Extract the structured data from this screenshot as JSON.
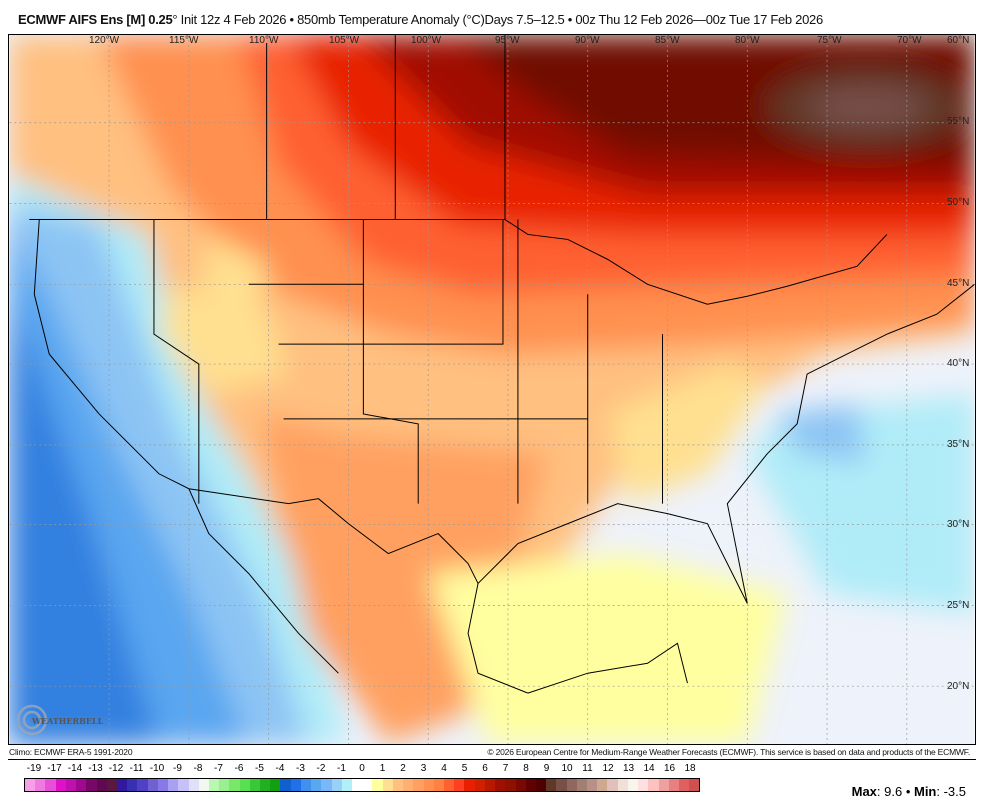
{
  "header": {
    "model": "ECMWF AIFS Ens [M] 0.25",
    "degree": "°",
    "rest": " Init 12z 4 Feb 2026 • 850mb Temperature Anomaly (°C)Days 7.5–12.5 • 00z Thu 12 Feb 2026—00z Tue 17 Feb 2026"
  },
  "map": {
    "lon_labels": [
      "120°W",
      "115°W",
      "110°W",
      "105°W",
      "100°W",
      "95°W",
      "90°W",
      "85°W",
      "80°W",
      "75°W",
      "70°W",
      "60°N"
    ],
    "lat_labels": [
      "55°N",
      "50°N",
      "45°N",
      "40°N",
      "35°N",
      "30°N",
      "25°N",
      "20°N"
    ],
    "logo_text": "WEATHERBELL"
  },
  "footer": {
    "climo": "Climo: ECMWF ERA-5 1991-2020",
    "copyright": "© 2026 European Centre for Medium-Range Weather Forecasts (ECMWF). This service is based on data and products of the ECMWF."
  },
  "colorbar": {
    "ticks": [
      "-19",
      "-17",
      "-14",
      "-13",
      "-12",
      "-11",
      "-10",
      "-9",
      "-8",
      "-7",
      "-6",
      "-5",
      "-4",
      "-3",
      "-2",
      "-1",
      "0",
      "1",
      "2",
      "3",
      "4",
      "5",
      "6",
      "7",
      "8",
      "9",
      "10",
      "11",
      "12",
      "13",
      "14",
      "16",
      "18"
    ],
    "colors": [
      "#f7a0e8",
      "#f07ae0",
      "#e84ed8",
      "#e010c8",
      "#c010b0",
      "#a00890",
      "#780868",
      "#600850",
      "#581840",
      "#3018a0",
      "#3830b0",
      "#5040c8",
      "#7060d0",
      "#8878e8",
      "#a8a0f0",
      "#c8c0f8",
      "#e0e0f8",
      "#f0f8f0",
      "#b8f8b0",
      "#98f090",
      "#78e868",
      "#58e050",
      "#38c838",
      "#20b020",
      "#10a010",
      "#1060d0",
      "#2070e8",
      "#4090f0",
      "#58a8f0",
      "#78b8f8",
      "#98d0f8",
      "#b0f0f8",
      "#ffffff",
      "#ffffff",
      "#ffffa0",
      "#ffe090",
      "#ffc080",
      "#ffb070",
      "#ffa060",
      "#ff9050",
      "#ff8040",
      "#ff6030",
      "#ff4020",
      "#e82000",
      "#d02000",
      "#b81800",
      "#a01000",
      "#901000",
      "#780800",
      "#600000",
      "#500000",
      "#603828",
      "#785048",
      "#906860",
      "#a08070",
      "#b89088",
      "#d0a890",
      "#e0c0b8",
      "#f0e0d8",
      "#f8f4ee",
      "#ffe0e0",
      "#ffc0c0",
      "#f0a0a0",
      "#e88080",
      "#e06060",
      "#d05050"
    ]
  },
  "stats": {
    "max_label": "Max",
    "max": ": 9.6 • ",
    "min_label": "Min",
    "min": ": -3.5"
  }
}
